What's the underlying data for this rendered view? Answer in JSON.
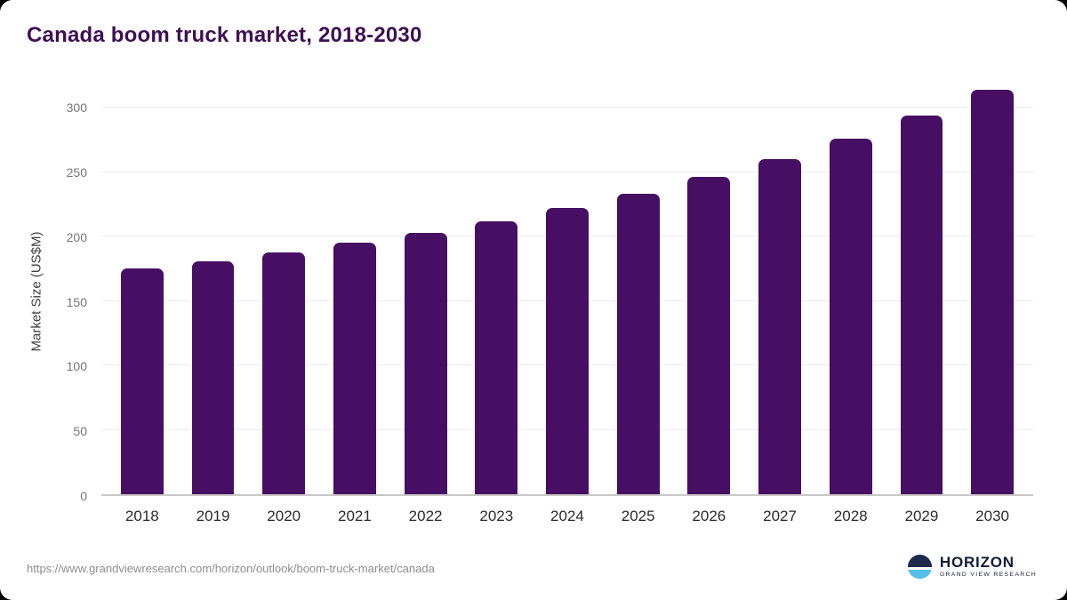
{
  "page": {
    "title": "Canada boom truck market, 2018-2030",
    "source_url": "https://www.grandviewresearch.com/horizon/outlook/boom-truck-market/canada"
  },
  "logo": {
    "name": "HORIZON",
    "subtitle": "GRAND VIEW RESEARCH"
  },
  "chart_data": {
    "type": "bar",
    "title": "Canada boom truck market, 2018-2030",
    "categories": [
      "2018",
      "2019",
      "2020",
      "2021",
      "2022",
      "2023",
      "2024",
      "2025",
      "2026",
      "2027",
      "2028",
      "2029",
      "2030"
    ],
    "values": [
      175,
      181,
      188,
      195,
      203,
      212,
      222,
      233,
      246,
      260,
      276,
      294,
      314
    ],
    "xlabel": "",
    "ylabel": "Market Size (US$M)",
    "ylim": [
      0,
      316
    ],
    "yticks": [
      0,
      50,
      100,
      150,
      200,
      250,
      300
    ],
    "grid": true,
    "legend": "none",
    "bar_color": "#470f63",
    "title_color": "#3d1054"
  }
}
